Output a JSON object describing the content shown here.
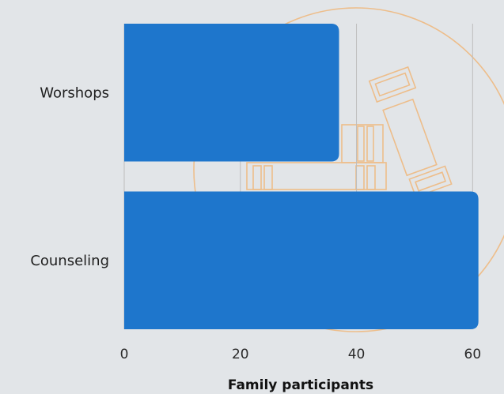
{
  "chart_data": {
    "type": "bar",
    "orientation": "horizontal",
    "categories": [
      "Worshops",
      "Counseling"
    ],
    "values": [
      37,
      61
    ],
    "xlabel": "Family participants",
    "ylabel": "",
    "xlim": [
      0,
      62
    ],
    "xticks": [
      0,
      20,
      40,
      60
    ],
    "grid": true,
    "legend": "none"
  },
  "colors": {
    "bar": "#1e76cc",
    "background": "#e2e5e8",
    "grid": "#bdbdbd",
    "watermark": "#f0b77a"
  },
  "watermark": {
    "icon": "spine-vertebrae-outline-icon"
  }
}
